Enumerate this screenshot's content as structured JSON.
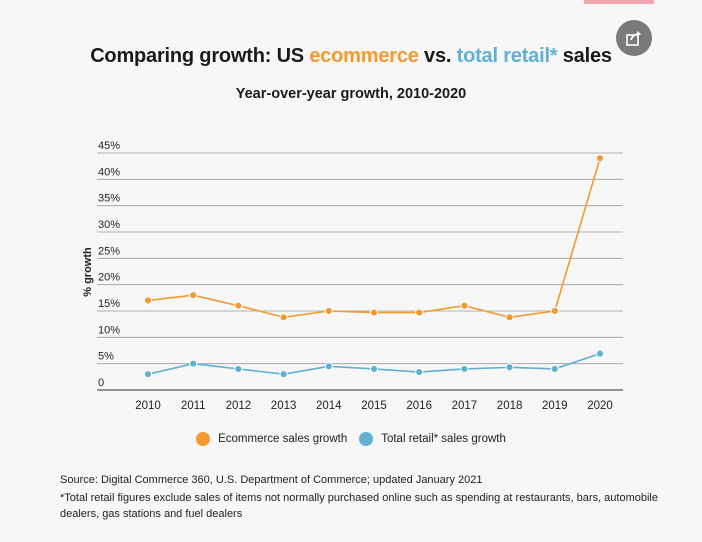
{
  "header": {
    "title_part1": "Comparing growth: US ",
    "title_ecommerce": "ecommerce",
    "title_part2": " vs. ",
    "title_retail": "total retail*",
    "title_part3": " sales",
    "subtitle": "Year-over-year growth, 2010-2020"
  },
  "share": {
    "icon": "share-icon"
  },
  "colors": {
    "ecommerce": "#f39a2f",
    "retail": "#5fb0d3",
    "axis": "#555555",
    "grid": "#9a9a9a"
  },
  "chart_data": {
    "type": "line",
    "title": "Comparing growth: US ecommerce vs. total retail* sales",
    "subtitle": "Year-over-year growth, 2010-2020",
    "ylabel": "% growth",
    "xlabel": "",
    "x": [
      "2010",
      "2011",
      "2012",
      "2013",
      "2014",
      "2015",
      "2016",
      "2017",
      "2018",
      "2019",
      "2020"
    ],
    "ylim": [
      0,
      45
    ],
    "yticks": [
      0,
      5,
      10,
      15,
      20,
      25,
      30,
      35,
      40,
      45
    ],
    "ytick_labels": [
      "0",
      "5%",
      "10%",
      "15%",
      "20%",
      "25%",
      "30%",
      "35%",
      "40%",
      "45%"
    ],
    "grid": "horizontal",
    "legend_position": "bottom",
    "series": [
      {
        "name": "Ecommerce sales growth",
        "color": "#f39a2f",
        "values": [
          17.0,
          18.0,
          16.0,
          13.8,
          15.0,
          14.7,
          14.7,
          16.0,
          13.8,
          15.0,
          44.0
        ]
      },
      {
        "name": "Total retail* sales growth",
        "color": "#5fb0d3",
        "values": [
          3.0,
          5.0,
          4.0,
          3.0,
          4.5,
          4.0,
          3.4,
          4.0,
          4.3,
          4.0,
          6.9
        ]
      }
    ]
  },
  "legend": {
    "ecommerce": "Ecommerce sales growth",
    "retail": "Total retail* sales growth"
  },
  "footer": {
    "source": "Source: Digital Commerce 360, U.S. Department of Commerce; updated January 2021",
    "footnote": "*Total retail figures exclude sales of items not normally purchased online such as spending at restaurants, bars, automobile dealers, gas stations and fuel dealers"
  }
}
